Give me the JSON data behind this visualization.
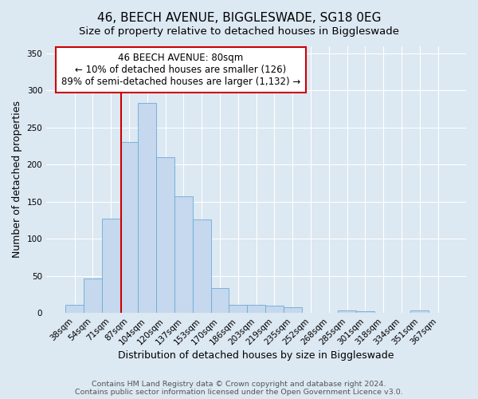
{
  "title1": "46, BEECH AVENUE, BIGGLESWADE, SG18 0EG",
  "title2": "Size of property relative to detached houses in Biggleswade",
  "xlabel": "Distribution of detached houses by size in Biggleswade",
  "ylabel": "Number of detached properties",
  "categories": [
    "38sqm",
    "54sqm",
    "71sqm",
    "87sqm",
    "104sqm",
    "120sqm",
    "137sqm",
    "153sqm",
    "170sqm",
    "186sqm",
    "203sqm",
    "219sqm",
    "235sqm",
    "252sqm",
    "268sqm",
    "285sqm",
    "301sqm",
    "318sqm",
    "334sqm",
    "351sqm",
    "367sqm"
  ],
  "values": [
    11,
    47,
    127,
    230,
    283,
    210,
    157,
    126,
    34,
    11,
    11,
    10,
    8,
    0,
    0,
    3,
    2,
    0,
    0,
    3,
    0
  ],
  "bar_color": "#c5d8ed",
  "bar_edge_color": "#6aacd8",
  "vline_position": 2.575,
  "vline_color": "#cc0000",
  "annotation_line1": "46 BEECH AVENUE: 80sqm",
  "annotation_line2": "← 10% of detached houses are smaller (126)",
  "annotation_line3": "89% of semi-detached houses are larger (1,132) →",
  "annotation_box_facecolor": "#ffffff",
  "annotation_box_edgecolor": "#cc0000",
  "footnote1": "Contains HM Land Registry data © Crown copyright and database right 2024.",
  "footnote2": "Contains public sector information licensed under the Open Government Licence v3.0.",
  "ylim": [
    0,
    360
  ],
  "yticks": [
    0,
    50,
    100,
    150,
    200,
    250,
    300,
    350
  ],
  "background_color": "#dce8f2",
  "grid_color": "#ffffff",
  "title_fontsize": 11,
  "subtitle_fontsize": 9.5,
  "ylabel_fontsize": 9,
  "xlabel_fontsize": 9,
  "tick_fontsize": 7.5,
  "annotation_fontsize": 8.5,
  "footnote_fontsize": 6.8
}
